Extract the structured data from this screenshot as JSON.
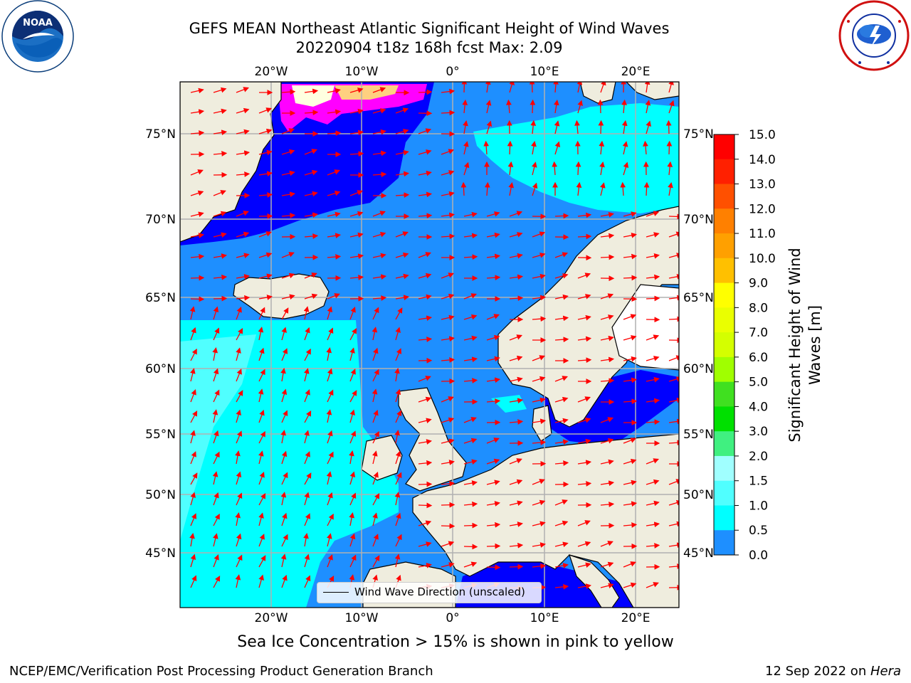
{
  "title": {
    "line1": "GEFS MEAN Northeast Atlantic Significant Height of Wind Waves",
    "line2": "20220904 t18z 168h fcst   Max: 2.09"
  },
  "logos": {
    "left": {
      "name": "NOAA",
      "icon": "noaa-logo"
    },
    "right": {
      "name": "NATIONAL WEATHER SERVICE",
      "icon": "nws-logo"
    }
  },
  "map": {
    "lon_ticks_top": [
      "20°W",
      "10°W",
      "0°",
      "10°E",
      "20°E"
    ],
    "lon_ticks_bottom": [
      "20°W",
      "10°W",
      "0°",
      "10°E",
      "20°E"
    ],
    "lat_ticks_left": [
      "75°N",
      "70°N",
      "65°N",
      "60°N",
      "55°N",
      "50°N",
      "45°N"
    ],
    "lat_ticks_right": [
      "75°N",
      "70°N",
      "65°N",
      "60°N",
      "55°N",
      "50°N",
      "45°N"
    ],
    "legend_label": "Wind Wave Direction (unscaled)",
    "colors": {
      "land": "#efedde",
      "arrow": "#ff0000",
      "grid": "#b0b0b0"
    }
  },
  "colorbar": {
    "label": "Significant Height of Wind Waves [m]",
    "label_line1": "Significant Height of Wind",
    "label_line2": "Waves [m]",
    "ticks": [
      "15.0",
      "14.0",
      "13.0",
      "12.0",
      "11.0",
      "10.0",
      "9.0",
      "8.0",
      "7.0",
      "6.0",
      "5.0",
      "4.0",
      "3.0",
      "2.0",
      "1.5",
      "1.0",
      "0.5",
      "0.0"
    ],
    "colors": [
      "#ff0000",
      "#ff2000",
      "#ff5000",
      "#ff8000",
      "#ffa000",
      "#ffc000",
      "#ffff00",
      "#eaff00",
      "#d4ff00",
      "#a0ff00",
      "#40e020",
      "#00e000",
      "#40f080",
      "#a0ffff",
      "#50ffff",
      "#00ffff",
      "#1e8fff",
      "#0000ff"
    ]
  },
  "sea_ice_note": "Sea Ice Concentration > 15% is shown in pink to yellow",
  "footer": {
    "left": "NCEP/EMC/Verification Post Processing Product Generation Branch",
    "right_date": "12 Sep 2022 on ",
    "right_host": "Hera"
  }
}
